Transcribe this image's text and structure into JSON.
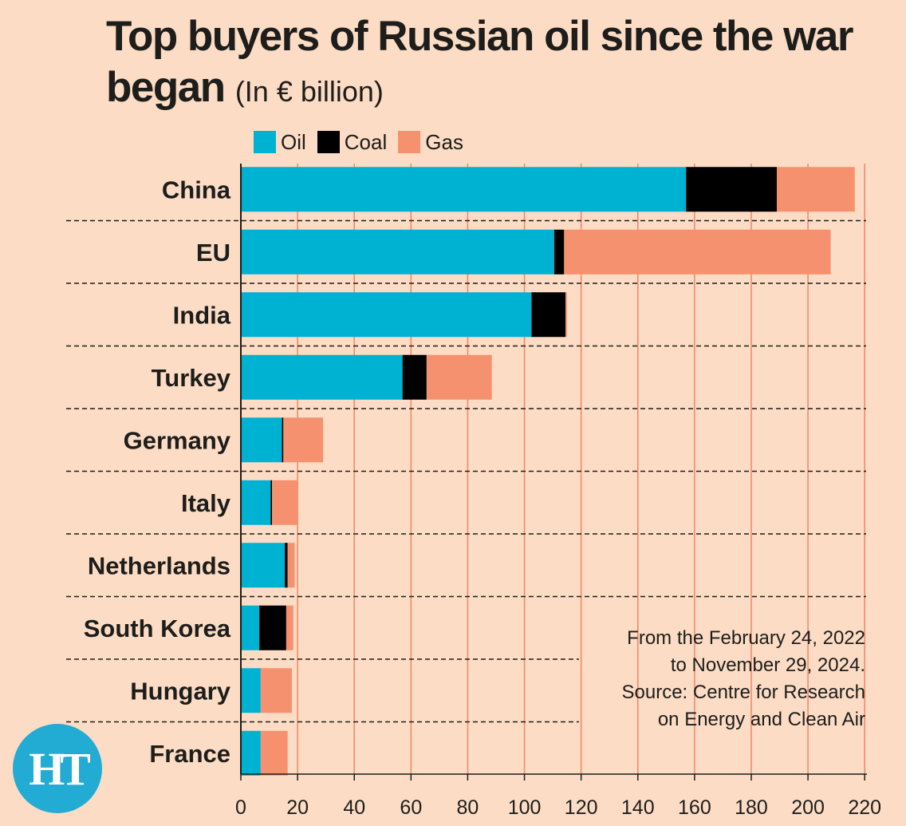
{
  "title_main": "Top buyers of Russian oil since the war began",
  "title_unit": "(In € billion)",
  "legend": [
    {
      "label": "Oil",
      "color": "#00b2d2"
    },
    {
      "label": "Coal",
      "color": "#000000"
    },
    {
      "label": "Gas",
      "color": "#f5916e"
    }
  ],
  "note": [
    "From the February 24, 2022",
    "to November 29, 2024.",
    "Source: Centre for Research",
    "on Energy and Clean Air"
  ],
  "logo_text": "HT",
  "colors": {
    "background": "#fcdcc4",
    "grid": "#f0856a",
    "text": "#1d1d1b"
  },
  "chart_data": {
    "type": "bar",
    "orientation": "horizontal",
    "stacked": true,
    "categories": [
      "China",
      "EU",
      "India",
      "Turkey",
      "Germany",
      "Italy",
      "Netherlands",
      "South Korea",
      "Hungary",
      "France"
    ],
    "series": [
      {
        "name": "Oil",
        "color": "#00b2d2",
        "values": [
          157,
          110.5,
          102.5,
          57,
          14.5,
          10.5,
          15.5,
          6.5,
          7,
          7
        ]
      },
      {
        "name": "Coal",
        "color": "#000000",
        "values": [
          32,
          3.5,
          12,
          8.5,
          0.5,
          0.5,
          1,
          9.5,
          0,
          0
        ]
      },
      {
        "name": "Gas",
        "color": "#f5916e",
        "values": [
          27.5,
          94,
          0.5,
          23,
          14,
          9,
          2.5,
          2.5,
          11,
          9.5
        ]
      }
    ],
    "xlim": [
      0,
      220
    ],
    "xticks": [
      0,
      20,
      40,
      60,
      80,
      100,
      120,
      140,
      160,
      180,
      200,
      220
    ],
    "legend_position": "top",
    "grid": true
  }
}
